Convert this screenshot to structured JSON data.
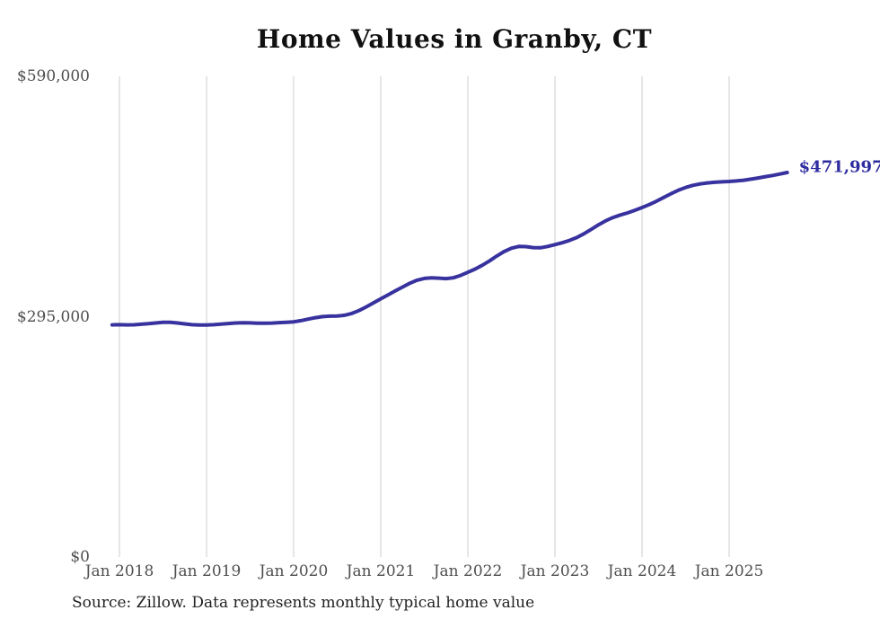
{
  "chart_data": {
    "type": "line",
    "title": "Home Values in Granby, CT",
    "x": [
      "2017-12",
      "2018-01",
      "2018-02",
      "2018-03",
      "2018-04",
      "2018-05",
      "2018-06",
      "2018-07",
      "2018-08",
      "2018-09",
      "2018-10",
      "2018-11",
      "2018-12",
      "2019-01",
      "2019-02",
      "2019-03",
      "2019-04",
      "2019-05",
      "2019-06",
      "2019-07",
      "2019-08",
      "2019-09",
      "2019-10",
      "2019-11",
      "2019-12",
      "2020-01",
      "2020-02",
      "2020-03",
      "2020-04",
      "2020-05",
      "2020-06",
      "2020-07",
      "2020-08",
      "2020-09",
      "2020-10",
      "2020-11",
      "2020-12",
      "2021-01",
      "2021-02",
      "2021-03",
      "2021-04",
      "2021-05",
      "2021-06",
      "2021-07",
      "2021-08",
      "2021-09",
      "2021-10",
      "2021-11",
      "2021-12",
      "2022-01",
      "2022-02",
      "2022-03",
      "2022-04",
      "2022-05",
      "2022-06",
      "2022-07",
      "2022-08",
      "2022-09",
      "2022-10",
      "2022-11",
      "2022-12",
      "2023-01",
      "2023-02",
      "2023-03",
      "2023-04",
      "2023-05",
      "2023-06",
      "2023-07",
      "2023-08",
      "2023-09",
      "2023-10",
      "2023-11",
      "2023-12",
      "2024-01",
      "2024-02",
      "2024-03",
      "2024-04",
      "2024-05",
      "2024-06",
      "2024-07",
      "2024-08",
      "2024-09",
      "2024-10",
      "2024-11",
      "2024-12",
      "2025-01",
      "2025-02",
      "2025-03",
      "2025-04",
      "2025-05",
      "2025-06",
      "2025-07",
      "2025-08",
      "2025-09"
    ],
    "values": [
      285000,
      285200,
      285000,
      285100,
      285700,
      286400,
      287300,
      288000,
      288100,
      287300,
      286200,
      285200,
      284800,
      284900,
      285200,
      285800,
      286600,
      287300,
      287600,
      287400,
      287100,
      287000,
      287200,
      287700,
      288200,
      288700,
      290200,
      292000,
      293800,
      295100,
      295700,
      295800,
      296800,
      299000,
      302500,
      307000,
      312000,
      317000,
      321800,
      326600,
      331400,
      336000,
      339800,
      342000,
      342800,
      342300,
      341800,
      342800,
      345600,
      349500,
      353500,
      358200,
      363600,
      369500,
      375000,
      379000,
      381200,
      381000,
      379800,
      379600,
      381200,
      383500,
      385800,
      388600,
      392200,
      396800,
      402200,
      407800,
      412800,
      416800,
      419800,
      422400,
      425600,
      429000,
      432600,
      436800,
      441400,
      446000,
      450200,
      453600,
      456200,
      458000,
      459200,
      460000,
      460500,
      461000,
      461600,
      462500,
      463800,
      465300,
      466900,
      468400,
      470100,
      471997
    ],
    "xlabel": "",
    "ylabel": "",
    "x_tick_labels": [
      "Jan 2018",
      "Jan 2019",
      "Jan 2020",
      "Jan 2021",
      "Jan 2022",
      "Jan 2023",
      "Jan 2024",
      "Jan 2025"
    ],
    "y_tick_labels": [
      "$590,000",
      "$295,000",
      "$0"
    ],
    "y_tick_values": [
      590000,
      295000,
      0
    ],
    "ylim": [
      0,
      590000
    ],
    "grid": "vertical-only",
    "legend_position": "none",
    "end_label": "$471,997",
    "last_value": 471997,
    "source_note": "Source: Zillow. Data represents monthly typical home value",
    "colors": {
      "line": "#37329e",
      "end_label": "#2d2b9e",
      "gridline": "#cccccc",
      "tick_text": "#4f4f4f",
      "title_text": "#111111",
      "source_text": "#222222",
      "background": "#ffffff"
    }
  }
}
